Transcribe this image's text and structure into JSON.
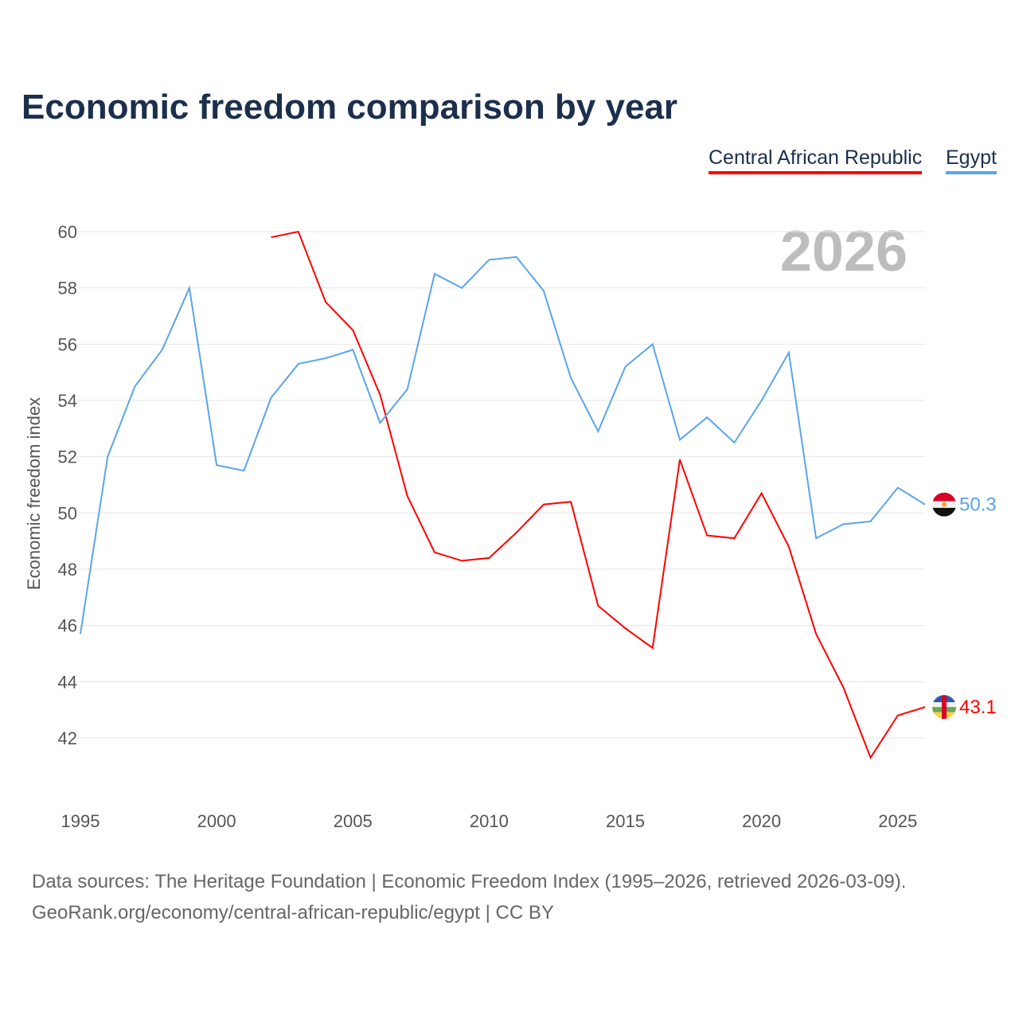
{
  "chart_data": {
    "type": "line",
    "title": "Economic freedom comparison by year",
    "ylabel": "Economic freedom index",
    "xlabel": "",
    "xlim": [
      1995,
      2026
    ],
    "ylim": [
      42,
      60
    ],
    "yticks": [
      42,
      44,
      46,
      48,
      50,
      52,
      54,
      56,
      58,
      60
    ],
    "xticks": [
      1995,
      2000,
      2005,
      2010,
      2015,
      2020,
      2025
    ],
    "year_watermark": "2026",
    "grid": true,
    "legend_position": "top-right",
    "series": [
      {
        "name": "Central African Republic",
        "color": "#ff0000",
        "end_label": "43.1",
        "x": [
          2002,
          2003,
          2004,
          2005,
          2006,
          2007,
          2008,
          2009,
          2010,
          2011,
          2012,
          2013,
          2014,
          2015,
          2016,
          2017,
          2018,
          2019,
          2020,
          2021,
          2022,
          2023,
          2024,
          2025,
          2026
        ],
        "values": [
          59.8,
          60.0,
          57.5,
          56.5,
          54.2,
          50.6,
          48.6,
          48.3,
          48.4,
          49.3,
          50.3,
          50.4,
          46.7,
          45.9,
          45.2,
          51.9,
          49.2,
          49.1,
          50.7,
          48.8,
          45.7,
          43.8,
          41.3,
          42.8,
          43.1
        ]
      },
      {
        "name": "Egypt",
        "color": "#5aa5ea",
        "end_label": "50.3",
        "x": [
          1995,
          1996,
          1997,
          1998,
          1999,
          2000,
          2001,
          2002,
          2003,
          2004,
          2005,
          2006,
          2007,
          2008,
          2009,
          2010,
          2011,
          2012,
          2013,
          2014,
          2015,
          2016,
          2017,
          2018,
          2019,
          2020,
          2021,
          2022,
          2023,
          2024,
          2025,
          2026
        ],
        "values": [
          45.7,
          52.0,
          54.5,
          55.8,
          58.0,
          51.7,
          51.5,
          54.1,
          55.3,
          55.5,
          55.8,
          53.2,
          54.4,
          58.5,
          58.0,
          59.0,
          59.1,
          57.9,
          54.8,
          52.9,
          55.2,
          56.0,
          52.6,
          53.4,
          52.5,
          54.0,
          55.7,
          49.1,
          49.6,
          49.7,
          50.9,
          50.3
        ]
      }
    ]
  },
  "footer": {
    "line1": "Data sources: The Heritage Foundation | Economic Freedom Index (1995–2026, retrieved 2026-03-09).",
    "line2": "GeoRank.org/economy/central-african-republic/egypt | CC BY"
  }
}
